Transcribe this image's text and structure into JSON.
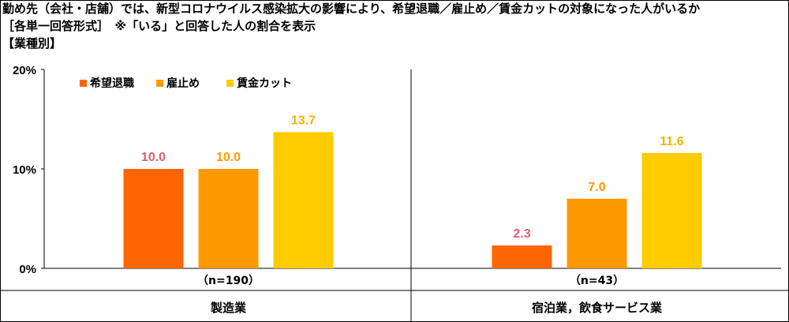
{
  "header": {
    "line1": "勤め先（会社・店舗）では、新型コロナウイルス感染拡大の影響により、希望退職／雇止め／賃金カットの対象になった人がいるか",
    "line2": "［各単一回答形式］　※「いる」と回答した人の割合を表示",
    "line3": "【業種別】"
  },
  "chart_data": {
    "type": "bar",
    "ylim": [
      0,
      20
    ],
    "yticks": [
      0,
      10,
      20
    ],
    "ytick_labels": [
      "0%",
      "10%",
      "20%"
    ],
    "legend_position": "top-left",
    "series": [
      {
        "name": "希望退職",
        "color": "#ff6600",
        "label_color": "#e06070",
        "values": [
          10.0,
          2.3
        ]
      },
      {
        "name": "雇止め",
        "color": "#ff9900",
        "label_color": "#ff9900",
        "values": [
          10.0,
          7.0
        ]
      },
      {
        "name": "賃金カット",
        "color": "#ffcc00",
        "label_color": "#f0b400",
        "values": [
          13.7,
          11.6
        ]
      }
    ],
    "groups": [
      {
        "n_label": "（n=190）",
        "name": "製造業"
      },
      {
        "n_label": "（n=43）",
        "name": "宿泊業，飲食サービス業"
      }
    ]
  }
}
